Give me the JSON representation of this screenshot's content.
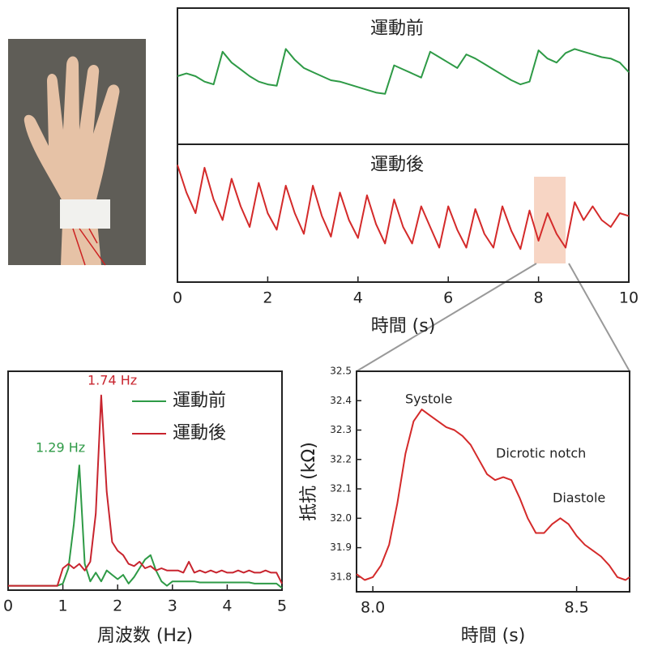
{
  "chart_data": [
    {
      "type": "line",
      "xlabel": "時間 (s)",
      "x": [
        0,
        0.2,
        0.4,
        0.6,
        0.8,
        1,
        1.2,
        1.4,
        1.6,
        1.8,
        2,
        2.2,
        2.4,
        2.6,
        2.8,
        3,
        3.2,
        3.4,
        3.6,
        3.8,
        4,
        4.2,
        4.4,
        4.6,
        4.8,
        5,
        5.2,
        5.4,
        5.6,
        5.8,
        6,
        6.2,
        6.4,
        6.6,
        6.8,
        7,
        7.2,
        7.4,
        7.6,
        7.8,
        8,
        8.2,
        8.4,
        8.6,
        8.8,
        9,
        9.2,
        9.4,
        9.6,
        9.8,
        10
      ],
      "series": [
        {
          "name": "運動前",
          "color": "#2e9a46",
          "values": [
            5.0,
            5.2,
            5.0,
            4.6,
            4.4,
            6.8,
            6.0,
            5.5,
            5.0,
            4.6,
            4.4,
            4.3,
            7.0,
            6.2,
            5.6,
            5.3,
            5.0,
            4.7,
            4.6,
            4.4,
            4.2,
            4.0,
            3.8,
            3.7,
            5.8,
            5.5,
            5.2,
            4.9,
            6.8,
            6.4,
            6.0,
            5.6,
            6.6,
            6.3,
            5.9,
            5.5,
            5.1,
            4.7,
            4.4,
            4.6,
            6.9,
            6.3,
            6.0,
            6.7,
            7.0,
            6.8,
            6.6,
            6.4,
            6.3,
            6.0,
            5.3
          ]
        },
        {
          "name": "運動後",
          "color": "#d42a2a",
          "values": [
            8.5,
            6.5,
            5.0,
            8.3,
            6.0,
            4.5,
            7.5,
            5.5,
            4.0,
            7.2,
            5.0,
            3.8,
            7.0,
            5.0,
            3.5,
            7.0,
            4.8,
            3.3,
            6.5,
            4.5,
            3.2,
            6.3,
            4.2,
            2.8,
            6.0,
            4.0,
            2.8,
            5.5,
            4.0,
            2.5,
            5.5,
            3.8,
            2.5,
            5.3,
            3.5,
            2.5,
            5.5,
            3.7,
            2.4,
            5.2,
            3.0,
            5.0,
            3.5,
            2.5,
            5.8,
            4.5,
            5.5,
            4.5,
            4.0,
            5.0,
            4.8
          ]
        }
      ],
      "xlim": [
        0,
        10
      ],
      "xticks": [
        0,
        2,
        4,
        6,
        8,
        10
      ],
      "ylim": [
        0,
        10
      ],
      "highlight": [
        7.9,
        8.6
      ],
      "highlight_color": "#f7d5c4"
    },
    {
      "type": "line",
      "xlabel": "周波数 (Hz)",
      "x": [
        0,
        0.1,
        0.2,
        0.3,
        0.4,
        0.5,
        0.6,
        0.7,
        0.8,
        0.9,
        1,
        1.1,
        1.2,
        1.3,
        1.4,
        1.5,
        1.6,
        1.7,
        1.8,
        1.9,
        2,
        2.1,
        2.2,
        2.3,
        2.4,
        2.5,
        2.6,
        2.7,
        2.8,
        2.9,
        3,
        3.1,
        3.2,
        3.3,
        3.4,
        3.5,
        3.6,
        3.7,
        3.8,
        3.9,
        4,
        4.1,
        4.2,
        4.3,
        4.4,
        4.5,
        4.6,
        4.7,
        4.8,
        4.9,
        5
      ],
      "series": [
        {
          "name": "運動前",
          "color": "#2e9a46",
          "values": [
            0.2,
            0.2,
            0.2,
            0.2,
            0.2,
            0.2,
            0.2,
            0.2,
            0.2,
            0.2,
            0.3,
            1.0,
            3.0,
            5.7,
            1.2,
            0.4,
            0.8,
            0.4,
            0.9,
            0.7,
            0.5,
            0.7,
            0.3,
            0.6,
            1.0,
            1.4,
            1.6,
            0.9,
            0.4,
            0.2,
            0.4,
            0.4,
            0.4,
            0.4,
            0.4,
            0.35,
            0.35,
            0.35,
            0.35,
            0.35,
            0.35,
            0.35,
            0.35,
            0.35,
            0.35,
            0.3,
            0.3,
            0.3,
            0.3,
            0.3,
            0.1
          ]
        },
        {
          "name": "運動後",
          "color": "#c8242e",
          "values": [
            0.2,
            0.2,
            0.2,
            0.2,
            0.2,
            0.2,
            0.2,
            0.2,
            0.2,
            0.2,
            1.0,
            1.2,
            1.0,
            1.2,
            0.9,
            1.3,
            3.5,
            8.9,
            4.5,
            2.2,
            1.8,
            1.6,
            1.2,
            1.1,
            1.3,
            1.0,
            1.1,
            0.9,
            1.0,
            0.9,
            0.9,
            0.9,
            0.8,
            1.3,
            0.8,
            0.9,
            0.8,
            0.9,
            0.8,
            0.9,
            0.8,
            0.8,
            0.9,
            0.8,
            0.9,
            0.8,
            0.8,
            0.9,
            0.8,
            0.8,
            0.3
          ]
        }
      ],
      "xlim": [
        0,
        5
      ],
      "xticks": [
        0,
        1,
        2,
        3,
        4,
        5
      ],
      "ylim": [
        0,
        10
      ],
      "annotations": [
        "1.74 Hz",
        "1.29 Hz"
      ]
    },
    {
      "type": "line",
      "xlabel": "時間 (s)",
      "ylabel": "抵抗 (kΩ)",
      "color": "#d42a2a",
      "x": [
        7.96,
        7.98,
        8.0,
        8.02,
        8.04,
        8.06,
        8.08,
        8.1,
        8.12,
        8.14,
        8.16,
        8.18,
        8.2,
        8.22,
        8.24,
        8.26,
        8.28,
        8.3,
        8.32,
        8.34,
        8.36,
        8.38,
        8.4,
        8.42,
        8.44,
        8.46,
        8.48,
        8.5,
        8.52,
        8.54,
        8.56,
        8.58,
        8.6,
        8.62,
        8.63
      ],
      "values": [
        31.81,
        31.79,
        31.8,
        31.84,
        31.91,
        32.05,
        32.22,
        32.33,
        32.37,
        32.35,
        32.33,
        32.31,
        32.3,
        32.28,
        32.25,
        32.2,
        32.15,
        32.13,
        32.14,
        32.13,
        32.07,
        32.0,
        31.95,
        31.95,
        31.98,
        32.0,
        31.98,
        31.94,
        31.91,
        31.89,
        31.87,
        31.84,
        31.8,
        31.79,
        31.8
      ],
      "xlim": [
        7.96,
        8.63
      ],
      "xticks": [
        {
          "value": 8,
          "label": "8.0"
        },
        {
          "value": 8.5,
          "label": "8.5"
        }
      ],
      "ylim": [
        31.75,
        32.5
      ],
      "yticks": [
        {
          "value": 31.8,
          "label": "31.8"
        },
        {
          "value": 31.9,
          "label": "31.9"
        },
        {
          "value": 32,
          "label": "32.0"
        },
        {
          "value": 32.1,
          "label": "32.1"
        },
        {
          "value": 32.2,
          "label": "32.2"
        },
        {
          "value": 32.3,
          "label": "32.3"
        },
        {
          "value": 32.4,
          "label": "32.4"
        },
        32.5
      ],
      "annotations": [
        "Systole",
        "Dicrotic notch",
        "Diastole"
      ]
    }
  ]
}
